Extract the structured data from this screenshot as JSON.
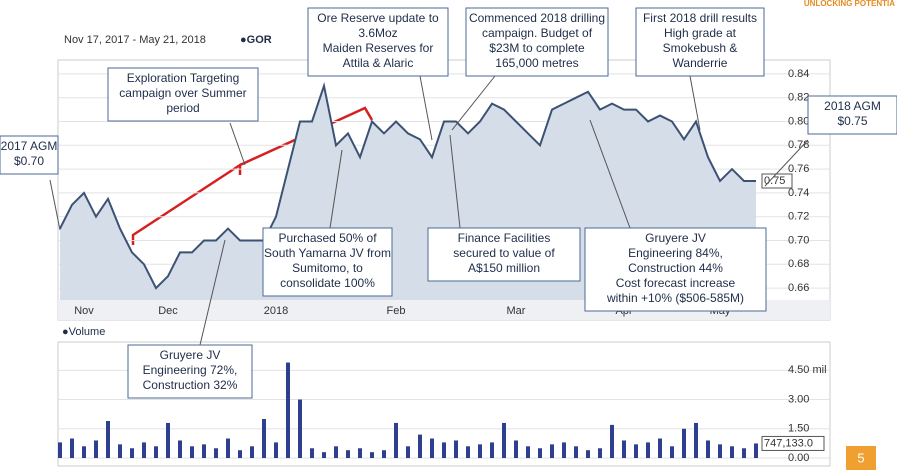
{
  "brand": "UNLOCKING POTENTIA",
  "page_number": "5",
  "chart_data": [
    {
      "type": "line",
      "date_range": "Nov 17, 2017 - May 21, 2018",
      "symbol": "●GOR",
      "categories": [
        null,
        null,
        "Nov",
        null,
        null,
        null,
        null,
        null,
        null,
        "Dec",
        null,
        null,
        null,
        null,
        null,
        null,
        null,
        null,
        "2018",
        null,
        null,
        null,
        null,
        null,
        null,
        null,
        null,
        null,
        "Feb",
        null,
        null,
        null,
        null,
        null,
        null,
        null,
        null,
        null,
        "Mar",
        null,
        null,
        null,
        null,
        null,
        null,
        null,
        null,
        "Apr",
        null,
        null,
        null,
        null,
        null,
        null,
        null,
        "May",
        null,
        null,
        null
      ],
      "values": [
        0.71,
        0.73,
        0.74,
        0.72,
        0.735,
        0.71,
        0.69,
        0.68,
        0.66,
        0.67,
        0.69,
        0.69,
        0.7,
        0.7,
        0.71,
        0.7,
        0.7,
        0.7,
        0.72,
        0.76,
        0.8,
        0.8,
        0.83,
        0.78,
        0.79,
        0.77,
        0.8,
        0.79,
        0.8,
        0.79,
        0.785,
        0.77,
        0.8,
        0.8,
        0.79,
        0.8,
        0.815,
        0.81,
        0.8,
        0.79,
        0.78,
        0.81,
        0.815,
        0.82,
        0.825,
        0.81,
        0.815,
        0.81,
        0.81,
        0.8,
        0.805,
        0.8,
        0.785,
        0.8,
        0.77,
        0.75,
        0.76,
        0.75,
        0.75
      ],
      "value_labels": [
        null,
        null,
        null,
        null,
        null,
        null,
        null,
        null,
        null,
        null,
        null,
        null,
        null,
        null,
        null,
        null,
        null,
        null,
        null,
        null,
        null,
        null,
        null,
        null,
        null,
        null,
        null,
        null,
        null,
        null,
        null,
        null,
        null,
        null,
        null,
        null,
        null,
        null,
        null,
        null,
        null,
        null,
        null,
        null,
        null,
        null,
        null,
        null,
        null,
        null,
        null,
        null,
        null,
        null,
        null,
        null,
        null,
        null,
        "0.75"
      ],
      "color": "#3b5274",
      "area_color": "#d5dde8",
      "ylim": [
        0.65,
        0.85
      ],
      "yticks": [
        0.66,
        0.68,
        {
          "value": 0.7,
          "label": "0.70"
        },
        0.72,
        0.74,
        0.76,
        0.78,
        {
          "value": 0.8,
          "label": "0.80"
        },
        0.82,
        0.84
      ],
      "grid": true
    },
    {
      "type": "bar",
      "title": "●Volume",
      "values": [
        0.8,
        1.0,
        0.6,
        0.9,
        1.9,
        0.7,
        0.5,
        0.8,
        0.6,
        1.8,
        0.9,
        0.6,
        0.7,
        0.5,
        1.0,
        0.4,
        0.6,
        2.0,
        0.8,
        4.9,
        3.0,
        0.5,
        0.3,
        0.6,
        0.4,
        0.5,
        0.3,
        0.4,
        1.8,
        0.6,
        1.2,
        1.0,
        0.8,
        0.9,
        0.6,
        0.7,
        0.8,
        1.8,
        0.9,
        0.6,
        0.5,
        0.7,
        0.8,
        0.6,
        0.4,
        0.5,
        1.7,
        0.9,
        0.7,
        0.8,
        1.0,
        0.6,
        1.5,
        1.8,
        0.9,
        0.7,
        0.6,
        0.5,
        0.747133
      ],
      "value_labels": [
        null,
        null,
        null,
        null,
        null,
        null,
        null,
        null,
        null,
        null,
        null,
        null,
        null,
        null,
        null,
        null,
        null,
        null,
        null,
        null,
        null,
        null,
        null,
        null,
        null,
        null,
        null,
        null,
        null,
        null,
        null,
        null,
        null,
        null,
        null,
        null,
        null,
        null,
        null,
        null,
        null,
        null,
        null,
        null,
        null,
        null,
        null,
        null,
        null,
        null,
        null,
        null,
        null,
        null,
        null,
        null,
        null,
        null,
        "747,133.0"
      ],
      "color": "#2e3f8f",
      "ylim": [
        0,
        5.8
      ],
      "yticks": [
        {
          "value": 0,
          "label": "0.00"
        },
        {
          "value": 1.5,
          "label": "1.50"
        },
        {
          "value": 3,
          "label": "3.00"
        },
        {
          "value": 4.5,
          "label": "4.50 mil"
        }
      ],
      "grid": true
    }
  ],
  "annotations": [
    {
      "lines": [
        "2017 AGM",
        "$0.70"
      ]
    },
    {
      "lines": [
        "Exploration Targeting",
        "campaign over Summer",
        "period"
      ]
    },
    {
      "lines": [
        "Ore Reserve update to",
        "3.6Moz",
        "Maiden Reserves for",
        "Attila & Alaric"
      ]
    },
    {
      "lines": [
        "Commenced 2018 drilling",
        "campaign. Budget of",
        "$23M to complete",
        "165,000 metres"
      ]
    },
    {
      "lines": [
        "First 2018 drill results",
        "High grade at",
        "Smokebush &",
        "Wanderrie"
      ]
    },
    {
      "lines": [
        "2018 AGM",
        "$0.75"
      ]
    },
    {
      "lines": [
        "Purchased 50% of",
        "South Yamarna JV from",
        "Sumitomo, to",
        "consolidate 100%"
      ]
    },
    {
      "lines": [
        "Finance Facilities",
        "secured to value of",
        "A$150 million"
      ]
    },
    {
      "lines": [
        "Gruyere JV",
        "Engineering 84%,",
        "Construction 44%",
        "Cost forecast increase",
        "within +10% ($506-585M)"
      ]
    },
    {
      "lines": [
        "Gruyere JV",
        "Engineering 72%,",
        "Construction 32%"
      ]
    }
  ]
}
